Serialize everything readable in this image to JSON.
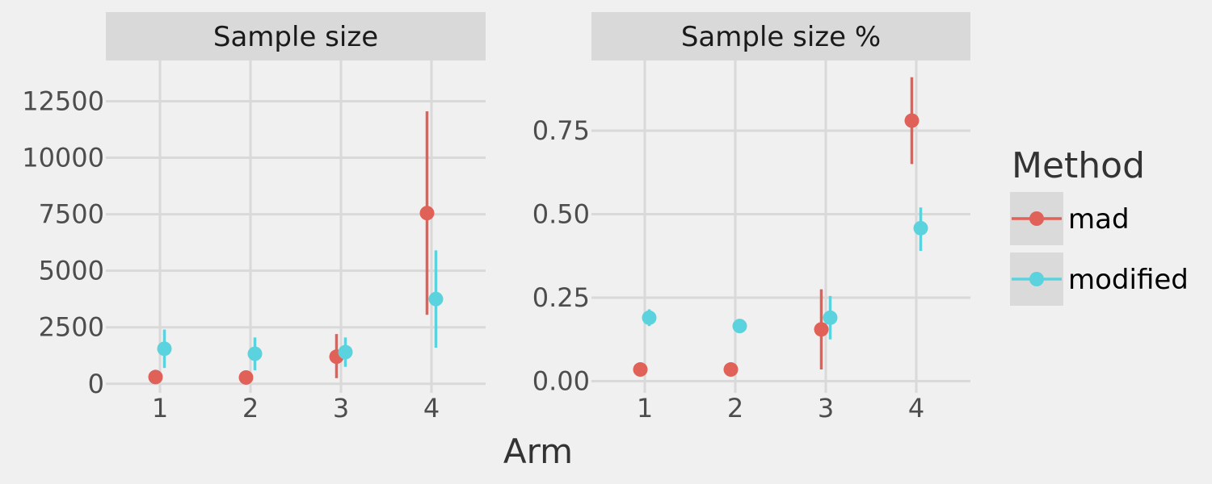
{
  "chart_data": {
    "type": "scatter",
    "xlabel": "Arm",
    "legend": {
      "title": "Method",
      "position": "right"
    },
    "series_styles": [
      {
        "name": "mad",
        "color": "#E06158"
      },
      {
        "name": "modified",
        "color": "#5BD3DE"
      }
    ],
    "panels": [
      {
        "title": "Sample size",
        "x_categories": [
          "1",
          "2",
          "3",
          "4"
        ],
        "ylim": [
          -400,
          14300
        ],
        "y_ticks": [
          0,
          2500,
          5000,
          7500,
          10000,
          12500
        ],
        "y_tick_labels": [
          "0",
          "2500",
          "5000",
          "7500",
          "10000",
          "12500"
        ],
        "series": [
          {
            "name": "mad",
            "points": [
              {
                "x": "1",
                "y": 300,
                "low": 300,
                "high": 300
              },
              {
                "x": "2",
                "y": 280,
                "low": 280,
                "high": 280
              },
              {
                "x": "3",
                "y": 1200,
                "low": 250,
                "high": 2200
              },
              {
                "x": "4",
                "y": 7550,
                "low": 3050,
                "high": 12050
              }
            ]
          },
          {
            "name": "modified",
            "points": [
              {
                "x": "1",
                "y": 1550,
                "low": 700,
                "high": 2400
              },
              {
                "x": "2",
                "y": 1330,
                "low": 600,
                "high": 2050
              },
              {
                "x": "3",
                "y": 1400,
                "low": 750,
                "high": 2050
              },
              {
                "x": "4",
                "y": 3750,
                "low": 1600,
                "high": 5900
              }
            ]
          }
        ]
      },
      {
        "title": "Sample size %",
        "x_categories": [
          "1",
          "2",
          "3",
          "4"
        ],
        "ylim": [
          -0.035,
          0.96
        ],
        "y_ticks": [
          0,
          0.25,
          0.5,
          0.75
        ],
        "y_tick_labels": [
          "0.00",
          "0.25",
          "0.50",
          "0.75"
        ],
        "series": [
          {
            "name": "mad",
            "points": [
              {
                "x": "1",
                "y": 0.035,
                "low": 0.035,
                "high": 0.035
              },
              {
                "x": "2",
                "y": 0.035,
                "low": 0.035,
                "high": 0.035
              },
              {
                "x": "3",
                "y": 0.155,
                "low": 0.035,
                "high": 0.275
              },
              {
                "x": "4",
                "y": 0.78,
                "low": 0.65,
                "high": 0.91
              }
            ]
          },
          {
            "name": "modified",
            "points": [
              {
                "x": "1",
                "y": 0.19,
                "low": 0.165,
                "high": 0.215
              },
              {
                "x": "2",
                "y": 0.165,
                "low": 0.145,
                "high": 0.185
              },
              {
                "x": "3",
                "y": 0.19,
                "low": 0.125,
                "high": 0.255
              },
              {
                "x": "4",
                "y": 0.458,
                "low": 0.39,
                "high": 0.52
              }
            ]
          }
        ]
      }
    ]
  }
}
